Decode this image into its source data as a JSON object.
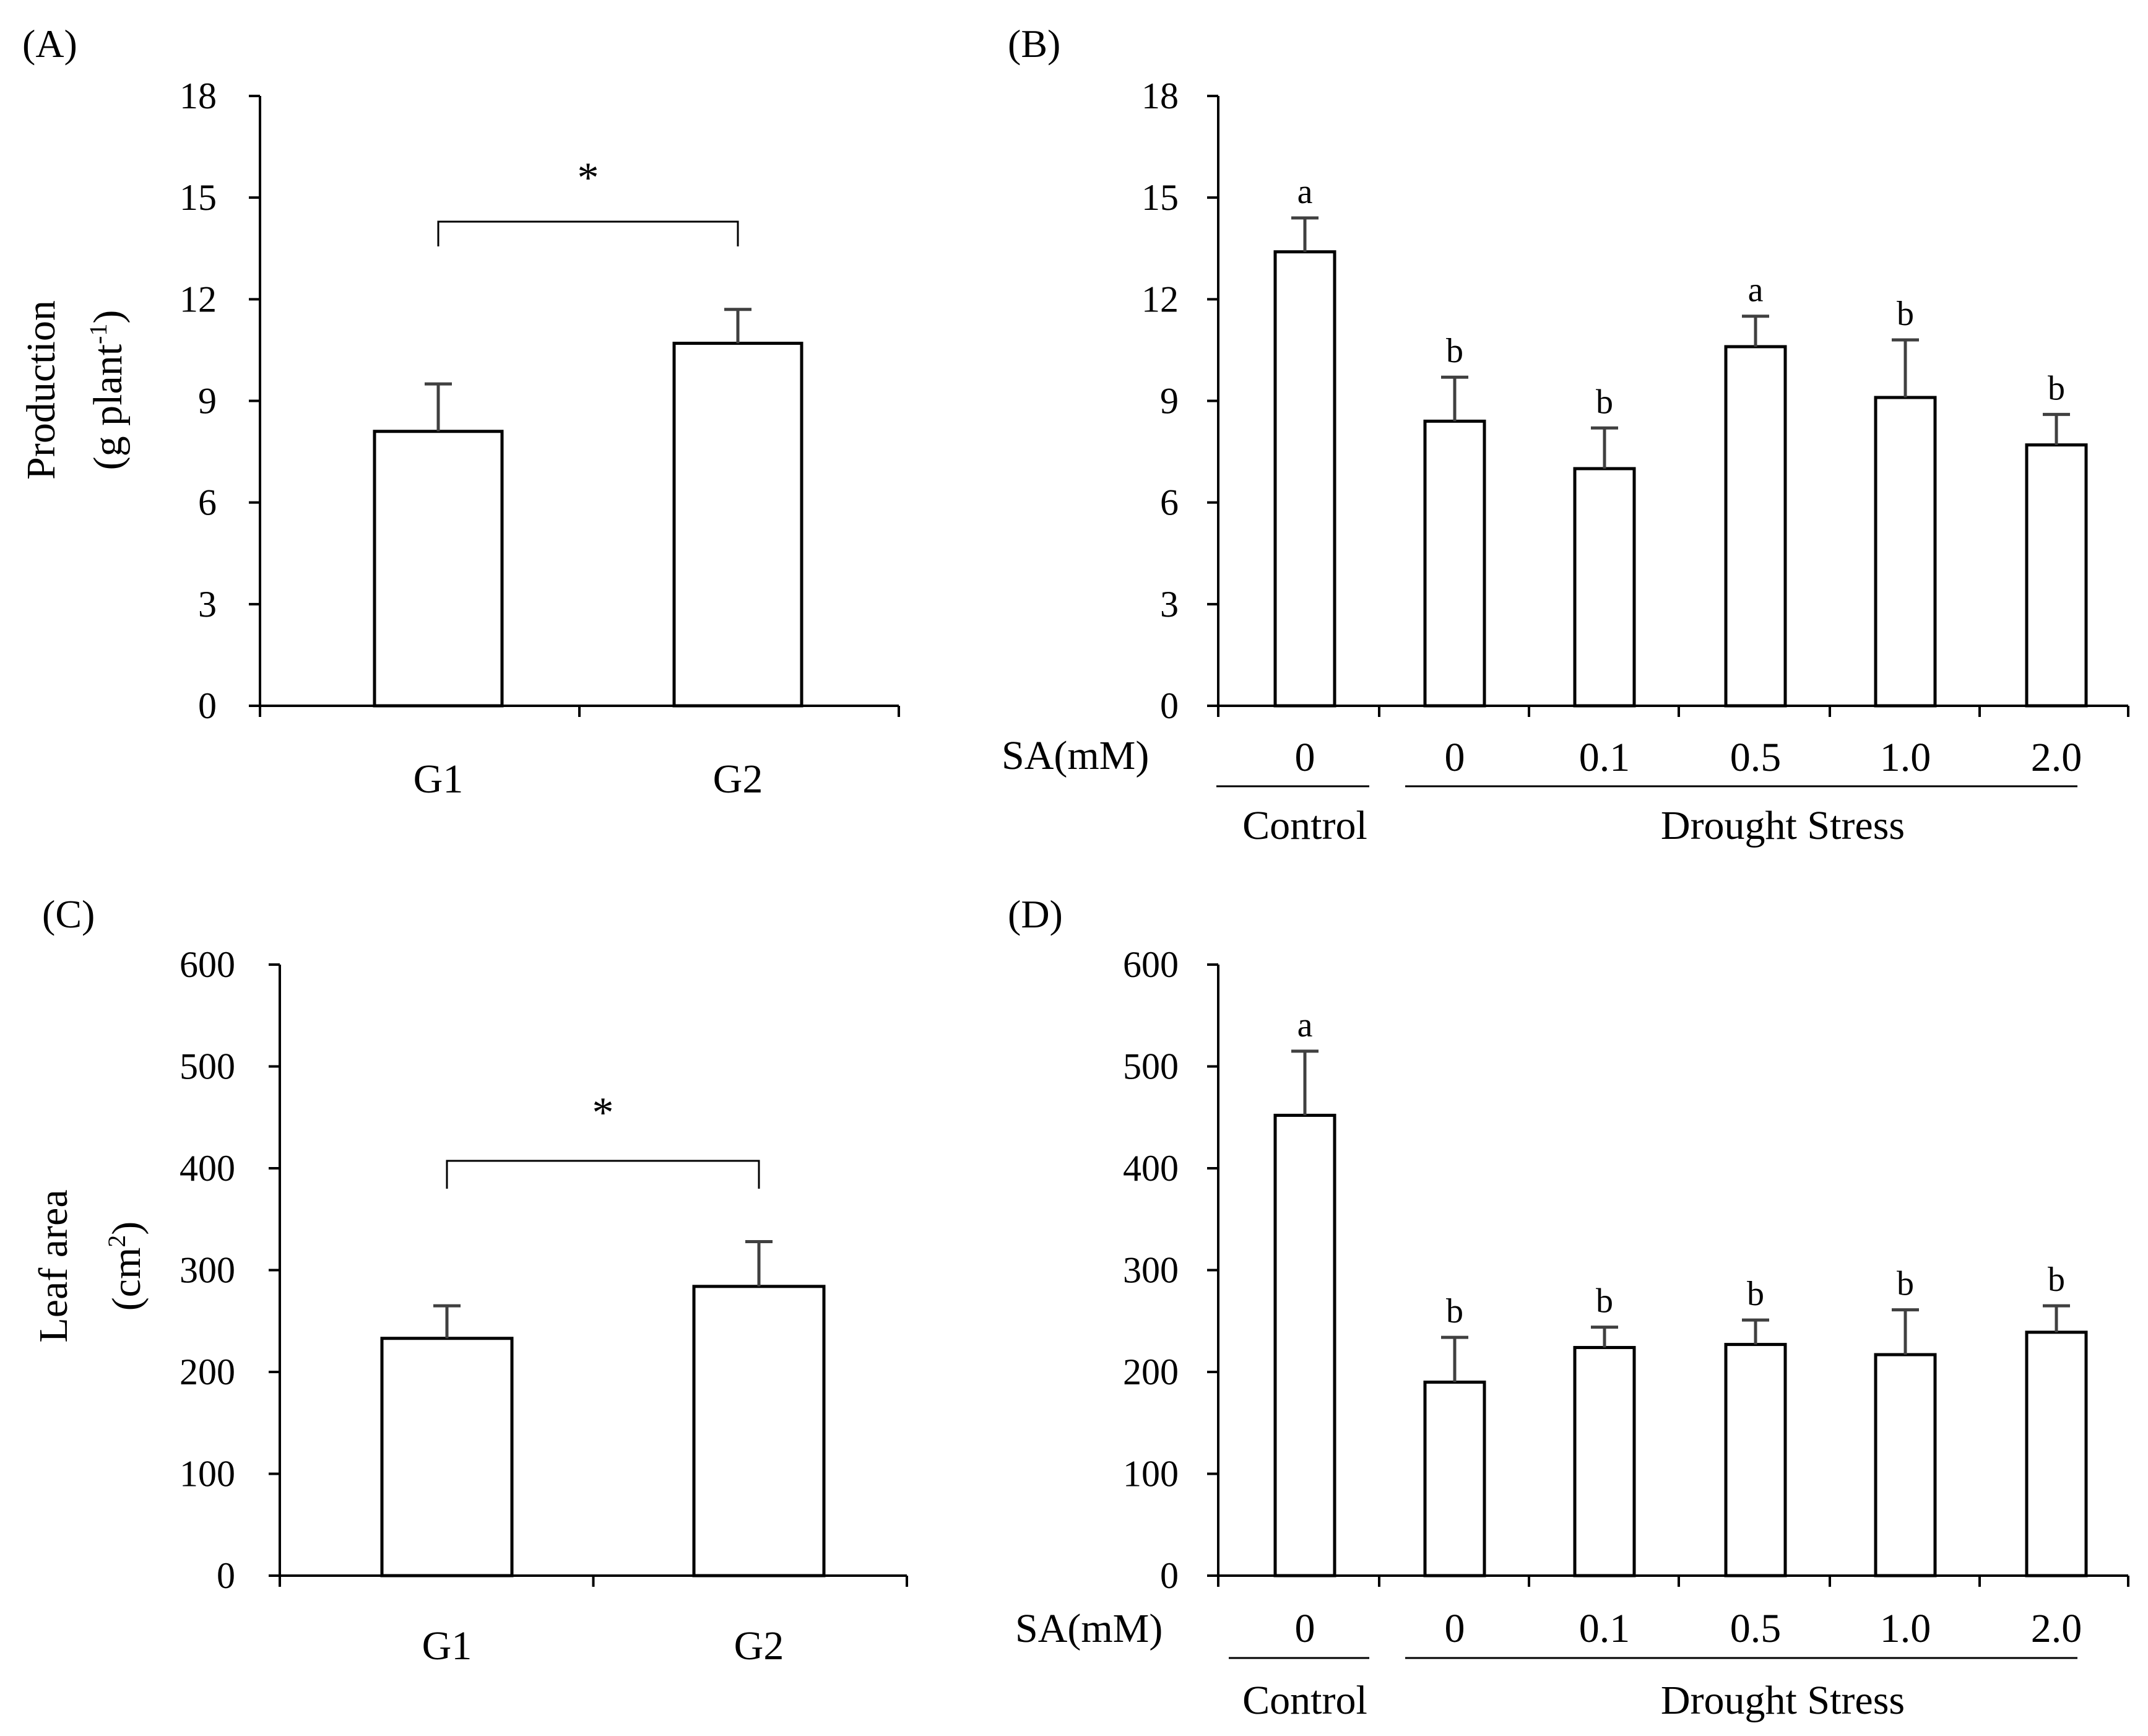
{
  "colors": {
    "bar_fill": "#ffffff",
    "bar_stroke": "#000000",
    "axis": "#000000",
    "error_bar": "#404040",
    "background": "#ffffff"
  },
  "chart_data": [
    {
      "panel": "(A)",
      "type": "bar",
      "categories": [
        "G1",
        "G2"
      ],
      "values": [
        8.1,
        10.7
      ],
      "errors": [
        1.4,
        1.0
      ],
      "ylabel_line1": "Production",
      "ylabel_line2": "(g plant",
      "ylabel_sup": "-1",
      "ylabel_close": ")",
      "ylim": [
        0,
        18
      ],
      "yticks": [
        "0",
        "3",
        "6",
        "9",
        "12",
        "15",
        "18"
      ],
      "significance": "*"
    },
    {
      "panel": "(B)",
      "type": "bar",
      "axis_title": "SA(mM)",
      "categories": [
        "0",
        "0",
        "0.1",
        "0.5",
        "1.0",
        "2.0"
      ],
      "values": [
        13.4,
        8.4,
        7.0,
        10.6,
        9.1,
        7.7
      ],
      "errors": [
        1.0,
        1.3,
        1.2,
        0.9,
        1.7,
        0.9
      ],
      "letters": [
        "a",
        "b",
        "b",
        "a",
        "b",
        "b"
      ],
      "groups": [
        "Control",
        "Drought Stress"
      ],
      "ylim": [
        0,
        18
      ],
      "yticks": [
        "0",
        "3",
        "6",
        "9",
        "12",
        "15",
        "18"
      ]
    },
    {
      "panel": "(C)",
      "type": "bar",
      "categories": [
        "G1",
        "G2"
      ],
      "values": [
        233,
        284
      ],
      "errors": [
        32,
        44
      ],
      "ylabel_line1": "Leaf area",
      "ylabel_line2": "(cm",
      "ylabel_sup": "2",
      "ylabel_close": ")",
      "ylim": [
        0,
        600
      ],
      "yticks": [
        "0",
        "100",
        "200",
        "300",
        "400",
        "500",
        "600"
      ],
      "significance": "*"
    },
    {
      "panel": "(D)",
      "type": "bar",
      "axis_title": "SA(mM)",
      "categories": [
        "0",
        "0",
        "0.1",
        "0.5",
        "1.0",
        "2.0"
      ],
      "values": [
        452,
        190,
        224,
        227,
        217,
        239
      ],
      "errors": [
        63,
        44,
        20,
        24,
        44,
        26
      ],
      "letters": [
        "a",
        "b",
        "b",
        "b",
        "b",
        "b"
      ],
      "groups": [
        "Control",
        "Drought Stress"
      ],
      "ylim": [
        0,
        600
      ],
      "yticks": [
        "0",
        "100",
        "200",
        "300",
        "400",
        "500",
        "600"
      ]
    }
  ]
}
